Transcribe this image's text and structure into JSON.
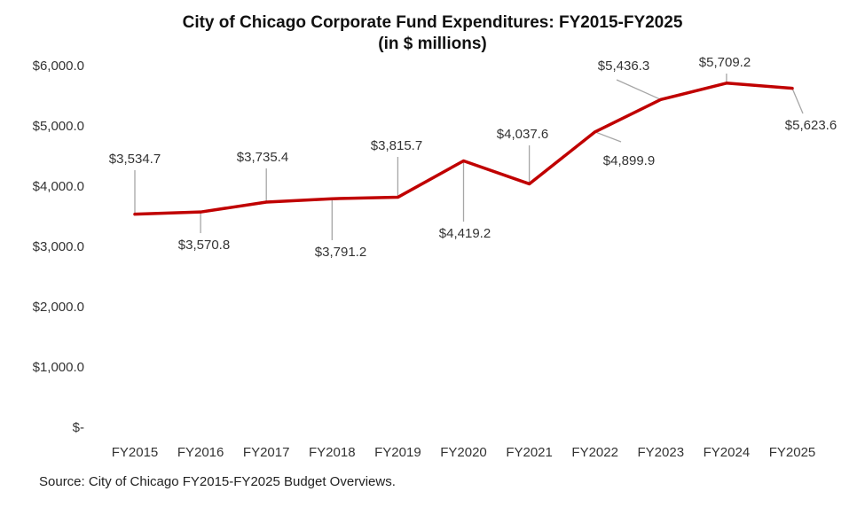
{
  "chart_data": {
    "type": "line",
    "title": "City of Chicago Corporate Fund Expenditures: FY2015-FY2025",
    "subtitle": "(in $ millions)",
    "categories": [
      "FY2015",
      "FY2016",
      "FY2017",
      "FY2018",
      "FY2019",
      "FY2020",
      "FY2021",
      "FY2022",
      "FY2023",
      "FY2024",
      "FY2025"
    ],
    "series": [
      {
        "values": [
          3534.7,
          3570.8,
          3735.4,
          3791.2,
          3815.7,
          4419.2,
          4037.6,
          4899.9,
          5436.3,
          5709.2,
          5623.6
        ]
      }
    ],
    "data_labels": [
      "$3,534.7",
      "$3,570.8",
      "$3,735.4",
      "$3,791.2",
      "$3,815.7",
      "$4,419.2",
      "$4,037.6",
      "$4,899.9",
      "$5,436.3",
      "$5,709.2",
      "$5,623.6"
    ],
    "y_ticks": [
      {
        "value": 0,
        "label": "$-"
      },
      {
        "value": 1000,
        "label": "$1,000.0"
      },
      {
        "value": 2000,
        "label": "$2,000.0"
      },
      {
        "value": 3000,
        "label": "$3,000.0"
      },
      {
        "value": 4000,
        "label": "$4,000.0"
      },
      {
        "value": 5000,
        "label": "$5,000.0"
      },
      {
        "value": 6000,
        "label": "$6,000.0"
      }
    ],
    "ylim": [
      0,
      6000
    ],
    "grid": false,
    "line_color": "#c00000",
    "leader_color": "#a6a6a6"
  },
  "source": "Source: City of Chicago FY2015-FY2025 Budget Overviews."
}
